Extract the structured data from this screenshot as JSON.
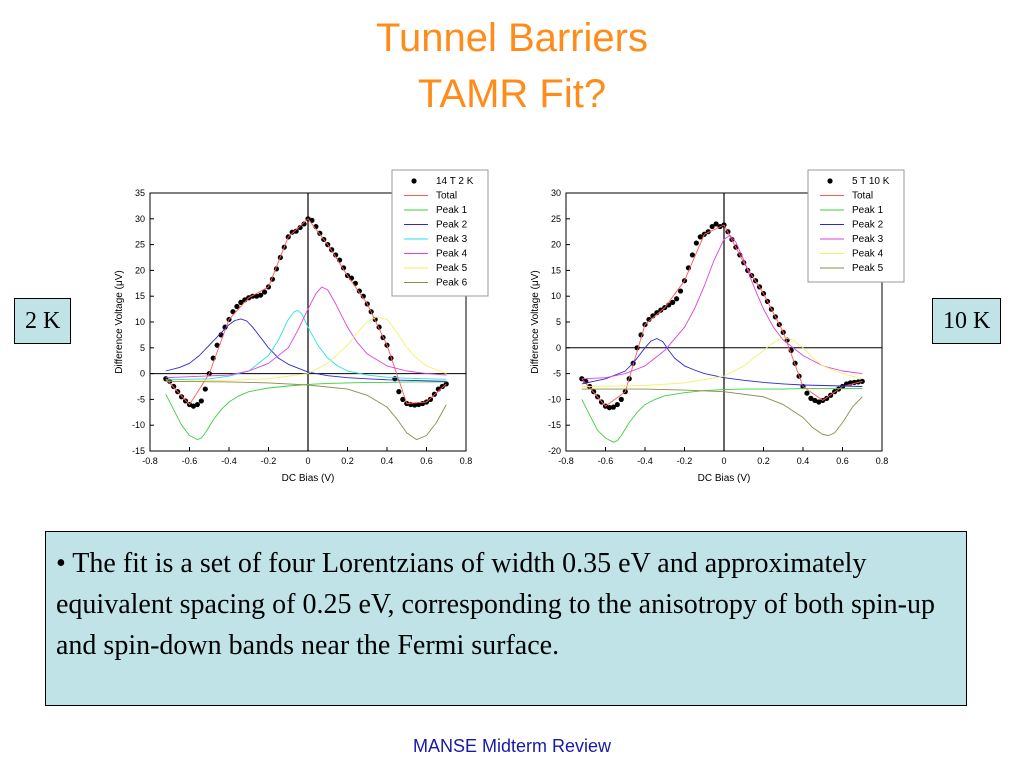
{
  "slide": {
    "title_line1": "Tunnel Barriers",
    "title_line2": "TAMR Fit?",
    "label_left": "2 K",
    "label_right": "10 K",
    "bullet_text": "• The fit is a set of four Lorentzians of width 0.35 eV and approximately equivalent spacing of 0.25 eV, corresponding to the anisotropy of both spin-up and spin-down bands near the Fermi surface.",
    "footer": "MANSE Midterm Review"
  },
  "chart_data": [
    {
      "type": "line",
      "xlabel": "DC Bias (V)",
      "ylabel": "Difference Voltage (μV)",
      "xlim": [
        -0.8,
        0.8
      ],
      "ylim": [
        -15,
        35
      ],
      "xticks": [
        -0.8,
        -0.6,
        -0.4,
        -0.2,
        0.0,
        0.2,
        0.4,
        0.6,
        0.8
      ],
      "yticks": [
        -15,
        -10,
        -5,
        0,
        5,
        10,
        15,
        20,
        25,
        30,
        35
      ],
      "legend_position": "top-right",
      "axes_lines_at_zero": true,
      "series": [
        {
          "name": "14 T 2 K",
          "color": "#000000",
          "style": "markers",
          "x": [
            -0.72,
            -0.7,
            -0.68,
            -0.66,
            -0.64,
            -0.62,
            -0.6,
            -0.58,
            -0.56,
            -0.54,
            -0.52,
            -0.5,
            -0.48,
            -0.46,
            -0.44,
            -0.42,
            -0.4,
            -0.38,
            -0.36,
            -0.34,
            -0.32,
            -0.3,
            -0.28,
            -0.26,
            -0.24,
            -0.22,
            -0.2,
            -0.18,
            -0.16,
            -0.14,
            -0.12,
            -0.1,
            -0.08,
            -0.06,
            -0.04,
            -0.02,
            0.0,
            0.02,
            0.04,
            0.06,
            0.08,
            0.1,
            0.12,
            0.14,
            0.16,
            0.18,
            0.2,
            0.22,
            0.24,
            0.26,
            0.28,
            0.3,
            0.32,
            0.34,
            0.36,
            0.38,
            0.4,
            0.42,
            0.44,
            0.46,
            0.48,
            0.5,
            0.52,
            0.54,
            0.56,
            0.58,
            0.6,
            0.62,
            0.64,
            0.66,
            0.68,
            0.7
          ],
          "y": [
            -1,
            -1.5,
            -2.5,
            -3.5,
            -4.5,
            -5.3,
            -6,
            -6.3,
            -6,
            -5.3,
            -3,
            0,
            3,
            5.5,
            7.5,
            9,
            10.5,
            12,
            13,
            13.8,
            14.3,
            14.7,
            15,
            15,
            15.2,
            15.8,
            16.8,
            18.3,
            20.3,
            22.5,
            24.5,
            26.5,
            27.4,
            27.6,
            28.3,
            29,
            30,
            29.7,
            28.5,
            27.2,
            26,
            25,
            24,
            23,
            22,
            20.5,
            19,
            18.5,
            17.5,
            16,
            15,
            13.5,
            12,
            10.5,
            9,
            7,
            5.5,
            3,
            -1,
            -3.5,
            -5,
            -5.8,
            -6,
            -6.1,
            -6,
            -5.8,
            -5.5,
            -5,
            -4,
            -3,
            -2.5,
            -2
          ]
        },
        {
          "name": "Total",
          "color": "#ff5a5a",
          "x": [
            -0.72,
            -0.6,
            -0.5,
            -0.4,
            -0.3,
            -0.2,
            -0.1,
            0.0,
            0.1,
            0.2,
            0.3,
            0.4,
            0.5,
            0.6,
            0.7
          ],
          "y": [
            -1,
            -6,
            0,
            10.5,
            14.7,
            16.8,
            26.5,
            30,
            25,
            19,
            13.5,
            5.5,
            -5.8,
            -5.5,
            -2
          ]
        },
        {
          "name": "Peak 1",
          "color": "#3ecf3e",
          "x": [
            -0.72,
            -0.68,
            -0.64,
            -0.6,
            -0.56,
            -0.54,
            -0.52,
            -0.48,
            -0.44,
            -0.4,
            -0.35,
            -0.3,
            -0.2,
            -0.1,
            0.0,
            0.1,
            0.2,
            0.3,
            0.4,
            0.5,
            0.6,
            0.7
          ],
          "y": [
            -4,
            -7,
            -10,
            -12,
            -12.8,
            -12.5,
            -11.5,
            -9,
            -7,
            -5.5,
            -4.3,
            -3.5,
            -2.8,
            -2.4,
            -2.1,
            -1.9,
            -1.8,
            -1.7,
            -1.7,
            -1.6,
            -1.6,
            -1.6
          ]
        },
        {
          "name": "Peak 2",
          "color": "#2a2ad0",
          "x": [
            -0.72,
            -0.65,
            -0.6,
            -0.55,
            -0.5,
            -0.45,
            -0.4,
            -0.37,
            -0.34,
            -0.31,
            -0.28,
            -0.25,
            -0.2,
            -0.15,
            -0.1,
            0.0,
            0.1,
            0.2,
            0.3,
            0.4,
            0.5,
            0.6,
            0.7
          ],
          "y": [
            0.5,
            1.2,
            2,
            3.5,
            5.5,
            7.5,
            9.5,
            10.3,
            10.6,
            10.2,
            9,
            7.5,
            5,
            3,
            1.8,
            0.3,
            -0.4,
            -0.8,
            -1,
            -1.2,
            -1.3,
            -1.4,
            -1.5
          ]
        },
        {
          "name": "Peak 3",
          "color": "#2ce0e0",
          "x": [
            -0.72,
            -0.5,
            -0.4,
            -0.3,
            -0.2,
            -0.15,
            -0.1,
            -0.07,
            -0.05,
            -0.03,
            0.0,
            0.05,
            0.1,
            0.15,
            0.2,
            0.3,
            0.4,
            0.5,
            0.6,
            0.7
          ],
          "y": [
            -1.2,
            -1,
            -0.5,
            0.5,
            3.5,
            6.5,
            10.5,
            12,
            12.2,
            11.5,
            9,
            5.5,
            3,
            1.5,
            0.5,
            -0.3,
            -0.7,
            -0.9,
            -1,
            -1.1
          ]
        },
        {
          "name": "Peak 4",
          "color": "#e040e0",
          "x": [
            -0.72,
            -0.4,
            -0.3,
            -0.2,
            -0.1,
            -0.05,
            0.0,
            0.04,
            0.07,
            0.1,
            0.14,
            0.2,
            0.25,
            0.3,
            0.4,
            0.5,
            0.6,
            0.7
          ],
          "y": [
            -0.8,
            -0.3,
            0.5,
            2,
            5,
            8.5,
            12.5,
            15.5,
            16.8,
            16.2,
            13.5,
            9,
            6,
            3.8,
            1.5,
            0.5,
            0,
            -0.3
          ]
        },
        {
          "name": "Peak 5",
          "color": "#f2f26a",
          "x": [
            -0.72,
            -0.4,
            -0.2,
            0.0,
            0.1,
            0.2,
            0.25,
            0.3,
            0.35,
            0.4,
            0.45,
            0.5,
            0.55,
            0.6,
            0.7
          ],
          "y": [
            -1.5,
            -1.3,
            -1,
            0,
            2,
            5.5,
            8,
            10,
            11,
            10.5,
            8,
            5,
            3,
            1.5,
            0
          ]
        },
        {
          "name": "Peak 6",
          "color": "#8c8c4a",
          "x": [
            -0.72,
            -0.4,
            -0.2,
            0.0,
            0.2,
            0.3,
            0.4,
            0.45,
            0.5,
            0.55,
            0.6,
            0.65,
            0.7
          ],
          "y": [
            -1.5,
            -1.6,
            -1.8,
            -2.2,
            -3,
            -4.2,
            -6.5,
            -8.8,
            -11.5,
            -12.8,
            -12,
            -9.5,
            -6
          ]
        }
      ]
    },
    {
      "type": "line",
      "xlabel": "DC Bias (V)",
      "ylabel": "Difference Voltage (μV)",
      "xlim": [
        -0.8,
        0.8
      ],
      "ylim": [
        -20,
        30
      ],
      "xticks": [
        -0.8,
        -0.6,
        -0.4,
        -0.2,
        0.0,
        0.2,
        0.4,
        0.6,
        0.8
      ],
      "yticks": [
        -20,
        -15,
        -10,
        -5,
        0,
        5,
        10,
        15,
        20,
        25,
        30
      ],
      "legend_position": "top-right",
      "axes_lines_at_zero": true,
      "series": [
        {
          "name": "5 T 10 K",
          "color": "#000000",
          "style": "markers",
          "x": [
            -0.72,
            -0.7,
            -0.68,
            -0.66,
            -0.64,
            -0.62,
            -0.6,
            -0.58,
            -0.56,
            -0.54,
            -0.52,
            -0.5,
            -0.48,
            -0.46,
            -0.44,
            -0.42,
            -0.4,
            -0.38,
            -0.36,
            -0.34,
            -0.32,
            -0.3,
            -0.28,
            -0.26,
            -0.24,
            -0.22,
            -0.2,
            -0.18,
            -0.16,
            -0.14,
            -0.12,
            -0.1,
            -0.08,
            -0.06,
            -0.04,
            -0.02,
            0.0,
            0.02,
            0.04,
            0.06,
            0.08,
            0.1,
            0.12,
            0.14,
            0.16,
            0.18,
            0.2,
            0.22,
            0.24,
            0.26,
            0.28,
            0.3,
            0.32,
            0.34,
            0.36,
            0.38,
            0.4,
            0.42,
            0.44,
            0.46,
            0.48,
            0.5,
            0.52,
            0.54,
            0.56,
            0.58,
            0.6,
            0.62,
            0.64,
            0.66,
            0.68,
            0.7
          ],
          "y": [
            -6,
            -6.5,
            -7.5,
            -8.5,
            -9.5,
            -10.5,
            -11.3,
            -11.6,
            -11.5,
            -11,
            -10,
            -8.5,
            -6,
            -3,
            0,
            2.5,
            4.5,
            5.5,
            6.2,
            6.8,
            7.3,
            7.8,
            8.3,
            8.8,
            9.5,
            11,
            13,
            15.5,
            18,
            20.3,
            21.5,
            22,
            22.5,
            23.5,
            24,
            23.5,
            23.8,
            22.5,
            21,
            19.5,
            18,
            16.5,
            15,
            14,
            13,
            11.8,
            10.5,
            9,
            7.5,
            6,
            4.5,
            3,
            1.5,
            -0.5,
            -3,
            -5.5,
            -7.5,
            -8.8,
            -9.8,
            -10.2,
            -10.5,
            -10.2,
            -9.8,
            -9.2,
            -8.5,
            -8,
            -7.5,
            -7,
            -6.8,
            -6.7,
            -6.6,
            -6.5
          ]
        },
        {
          "name": "Total",
          "color": "#ff5a5a",
          "x": [
            -0.72,
            -0.6,
            -0.5,
            -0.4,
            -0.3,
            -0.2,
            -0.1,
            0.0,
            0.1,
            0.2,
            0.3,
            0.4,
            0.5,
            0.6,
            0.7
          ],
          "y": [
            -6,
            -11.3,
            -8.5,
            4.5,
            7.8,
            13,
            22,
            23.8,
            16.5,
            10.5,
            3,
            -7.5,
            -10.2,
            -7.5,
            -6.5
          ]
        },
        {
          "name": "Peak 1",
          "color": "#3ecf3e",
          "x": [
            -0.72,
            -0.68,
            -0.64,
            -0.6,
            -0.56,
            -0.54,
            -0.52,
            -0.48,
            -0.44,
            -0.4,
            -0.35,
            -0.3,
            -0.2,
            -0.1,
            0.0,
            0.1,
            0.2,
            0.3,
            0.4,
            0.5,
            0.6,
            0.7
          ],
          "y": [
            -10,
            -13,
            -16,
            -17.5,
            -18.3,
            -18,
            -17,
            -14.5,
            -12.5,
            -11,
            -10,
            -9.3,
            -8.7,
            -8.3,
            -8.1,
            -8,
            -8,
            -8,
            -7.9,
            -7.9,
            -7.9,
            -7.9
          ]
        },
        {
          "name": "Peak 2",
          "color": "#2a2ad0",
          "x": [
            -0.72,
            -0.6,
            -0.5,
            -0.45,
            -0.4,
            -0.37,
            -0.34,
            -0.31,
            -0.28,
            -0.25,
            -0.2,
            -0.15,
            -0.1,
            0.0,
            0.1,
            0.2,
            0.3,
            0.4,
            0.5,
            0.6,
            0.7
          ],
          "y": [
            -7,
            -6,
            -4.5,
            -2.5,
            0,
            1.3,
            1.8,
            1.2,
            -0.5,
            -2,
            -3.5,
            -4.3,
            -5,
            -5.8,
            -6.3,
            -6.7,
            -7,
            -7.2,
            -7.3,
            -7.4,
            -7.5
          ]
        },
        {
          "name": "Peak 3",
          "color": "#e040e0",
          "x": [
            -0.72,
            -0.6,
            -0.5,
            -0.4,
            -0.3,
            -0.2,
            -0.15,
            -0.1,
            -0.05,
            0.0,
            0.03,
            0.06,
            0.1,
            0.15,
            0.2,
            0.25,
            0.3,
            0.4,
            0.5,
            0.6,
            0.7
          ],
          "y": [
            -6,
            -5.8,
            -5,
            -3.5,
            -0.5,
            4,
            7.5,
            12,
            17,
            21,
            21.8,
            20.5,
            17,
            12,
            7.5,
            4,
            1.5,
            -1.5,
            -3.5,
            -4.5,
            -5
          ]
        },
        {
          "name": "Peak 4",
          "color": "#f2f26a",
          "x": [
            -0.72,
            -0.4,
            -0.2,
            0.0,
            0.1,
            0.2,
            0.25,
            0.3,
            0.35,
            0.4,
            0.45,
            0.5,
            0.6,
            0.7
          ],
          "y": [
            -7.5,
            -7.3,
            -6.8,
            -5.5,
            -3.5,
            -0.5,
            1,
            2,
            1.5,
            0,
            -2,
            -3.5,
            -5,
            -6
          ]
        },
        {
          "name": "Peak 5",
          "color": "#8c8c4a",
          "x": [
            -0.72,
            -0.4,
            -0.2,
            0.0,
            0.2,
            0.3,
            0.4,
            0.45,
            0.5,
            0.53,
            0.56,
            0.6,
            0.65,
            0.7
          ],
          "y": [
            -8,
            -8,
            -8.2,
            -8.5,
            -9.5,
            -11,
            -13.5,
            -15.5,
            -16.8,
            -17,
            -16.5,
            -14.5,
            -11.5,
            -9.5
          ]
        }
      ]
    }
  ]
}
